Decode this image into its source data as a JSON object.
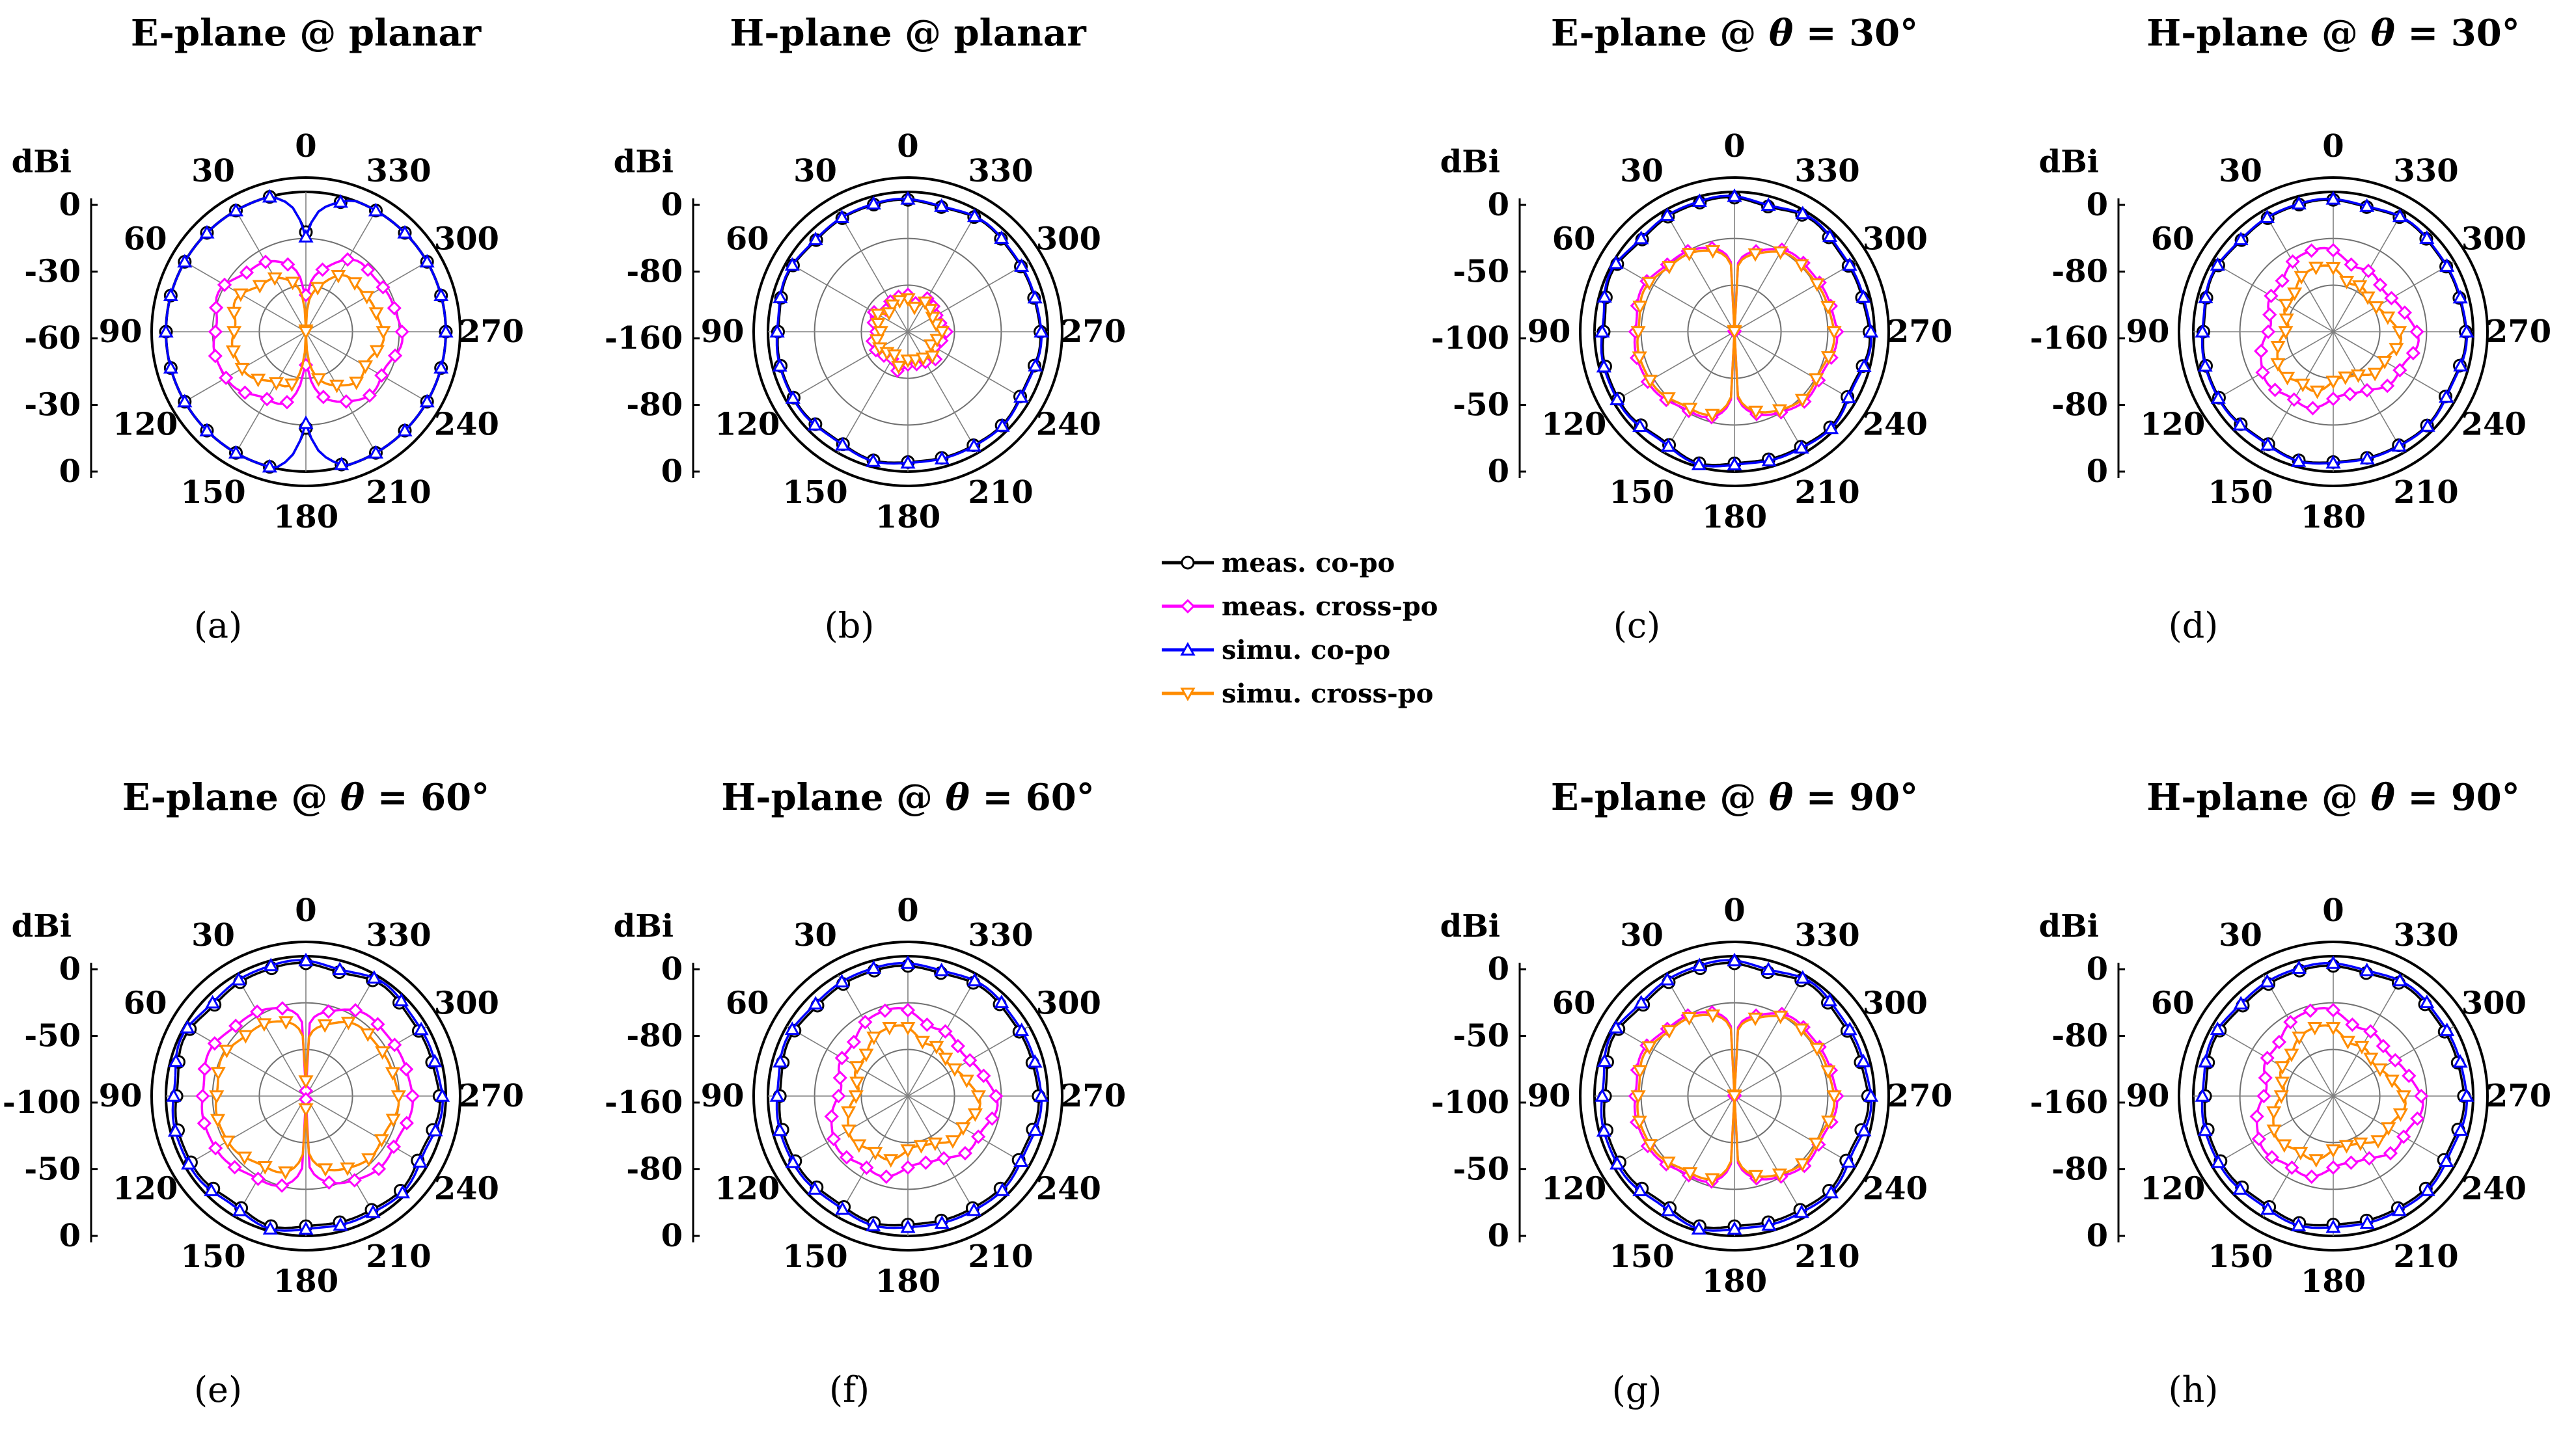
{
  "legend": [
    {
      "label": "meas. co-po",
      "color": "#000000",
      "marker": "circle"
    },
    {
      "label": "meas. cross-po",
      "color": "#ff00ff",
      "marker": "diamond"
    },
    {
      "label": "simu. co-po",
      "color": "#0000ff",
      "marker": "triangle-up"
    },
    {
      "label": "simu. cross-po",
      "color": "#ff8c00",
      "marker": "triangle-down"
    }
  ],
  "chart_data": [
    {
      "type": "polar",
      "title_prefix": "E-plane @ ",
      "title_var": "",
      "title_suffix": "planar",
      "caption": "(a)",
      "rlabel": "dBi",
      "rticks": [
        "0",
        "-30",
        "-60",
        "-30",
        "0"
      ],
      "angle_ticks": [
        "0",
        "30",
        "60",
        "90",
        "120",
        "150",
        "180",
        "210",
        "240",
        "270",
        "300",
        "330"
      ],
      "rlim": [
        -60,
        0
      ],
      "series": [
        {
          "name": "meas. co-po",
          "profile": "fig8",
          "peak": 10,
          "null": -18
        },
        {
          "name": "meas. cross-po",
          "profile": "fig8",
          "peak": -20,
          "null": -45
        },
        {
          "name": "simu. co-po",
          "profile": "fig8",
          "peak": 10,
          "null": -20
        },
        {
          "name": "simu. cross-po",
          "profile": "fig8",
          "peak": -28,
          "null": -60
        }
      ]
    },
    {
      "type": "polar",
      "title_prefix": "H-plane @ ",
      "title_var": "",
      "title_suffix": "planar",
      "caption": "(b)",
      "rlabel": "dBi",
      "rticks": [
        "0",
        "-80",
        "-160",
        "-80",
        "0"
      ],
      "angle_ticks": [
        "0",
        "30",
        "60",
        "90",
        "120",
        "150",
        "180",
        "210",
        "240",
        "270",
        "300",
        "330"
      ],
      "rlim": [
        -160,
        0
      ],
      "series": [
        {
          "name": "meas. co-po",
          "profile": "omni",
          "level": -10
        },
        {
          "name": "meas. cross-po",
          "profile": "small",
          "level": -120
        },
        {
          "name": "simu. co-po",
          "profile": "omni",
          "level": -9
        },
        {
          "name": "simu. cross-po",
          "profile": "small",
          "level": -125
        }
      ]
    },
    {
      "type": "polar",
      "title_prefix": "E-plane @ ",
      "title_var": "θ",
      "title_suffix": " = 30°",
      "caption": "(c)",
      "rlabel": "dBi",
      "rticks": [
        "0",
        "-50",
        "-100",
        "-50",
        "0"
      ],
      "angle_ticks": [
        "0",
        "30",
        "60",
        "90",
        "120",
        "150",
        "180",
        "210",
        "240",
        "270",
        "300",
        "330"
      ],
      "rlim": [
        -100,
        0
      ],
      "series": [
        {
          "name": "meas. co-po",
          "profile": "omni",
          "level": -5
        },
        {
          "name": "meas. cross-po",
          "profile": "fig8",
          "peak": -28,
          "null": -100
        },
        {
          "name": "simu. co-po",
          "profile": "omni",
          "level": -4
        },
        {
          "name": "simu. cross-po",
          "profile": "fig8",
          "peak": -30,
          "null": -100
        }
      ]
    },
    {
      "type": "polar",
      "title_prefix": "H-plane @ ",
      "title_var": "θ",
      "title_suffix": " = 30°",
      "caption": "(d)",
      "rlabel": "dBi",
      "rticks": [
        "0",
        "-80",
        "-160",
        "-80",
        "0"
      ],
      "angle_ticks": [
        "0",
        "30",
        "60",
        "90",
        "120",
        "150",
        "180",
        "210",
        "240",
        "270",
        "300",
        "330"
      ],
      "rlim": [
        -160,
        0
      ],
      "series": [
        {
          "name": "meas. co-po",
          "profile": "omni",
          "level": -10
        },
        {
          "name": "meas. cross-po",
          "profile": "blob",
          "level": -75
        },
        {
          "name": "simu. co-po",
          "profile": "omni",
          "level": -9
        },
        {
          "name": "simu. cross-po",
          "profile": "blob",
          "level": -95
        }
      ]
    },
    {
      "type": "polar",
      "title_prefix": "E-plane @ ",
      "title_var": "θ",
      "title_suffix": " = 60°",
      "caption": "(e)",
      "rlabel": "dBi",
      "rticks": [
        "0",
        "-50",
        "-100",
        "-50",
        "0"
      ],
      "angle_ticks": [
        "0",
        "30",
        "60",
        "90",
        "120",
        "150",
        "180",
        "210",
        "240",
        "270",
        "300",
        "330"
      ],
      "rlim": [
        -100,
        0
      ],
      "series": [
        {
          "name": "meas. co-po",
          "profile": "omni",
          "level": -6
        },
        {
          "name": "meas. cross-po",
          "profile": "fig8",
          "peak": -25,
          "null": -100
        },
        {
          "name": "simu. co-po",
          "profile": "omni",
          "level": -4
        },
        {
          "name": "simu. cross-po",
          "profile": "fig8",
          "peak": -35,
          "null": -90
        }
      ]
    },
    {
      "type": "polar",
      "title_prefix": "H-plane @ ",
      "title_var": "θ",
      "title_suffix": " = 60°",
      "caption": "(f)",
      "rlabel": "dBi",
      "rticks": [
        "0",
        "-80",
        "-160",
        "-80",
        "0"
      ],
      "angle_ticks": [
        "0",
        "30",
        "60",
        "90",
        "120",
        "150",
        "180",
        "210",
        "240",
        "270",
        "300",
        "330"
      ],
      "rlim": [
        -160,
        0
      ],
      "series": [
        {
          "name": "meas. co-po",
          "profile": "omni",
          "level": -12
        },
        {
          "name": "meas. cross-po",
          "profile": "blob",
          "level": -70
        },
        {
          "name": "simu. co-po",
          "profile": "omni",
          "level": -9
        },
        {
          "name": "simu. cross-po",
          "profile": "blob",
          "level": -90
        }
      ]
    },
    {
      "type": "polar",
      "title_prefix": "E-plane @ ",
      "title_var": "θ",
      "title_suffix": " = 90°",
      "caption": "(g)",
      "rlabel": "dBi",
      "rticks": [
        "0",
        "-50",
        "-100",
        "-50",
        "0"
      ],
      "angle_ticks": [
        "0",
        "30",
        "60",
        "90",
        "120",
        "150",
        "180",
        "210",
        "240",
        "270",
        "300",
        "330"
      ],
      "rlim": [
        -100,
        0
      ],
      "series": [
        {
          "name": "meas. co-po",
          "profile": "omni",
          "level": -6
        },
        {
          "name": "meas. cross-po",
          "profile": "fig8",
          "peak": -28,
          "null": -100
        },
        {
          "name": "simu. co-po",
          "profile": "omni",
          "level": -4
        },
        {
          "name": "simu. cross-po",
          "profile": "fig8",
          "peak": -30,
          "null": -100
        }
      ]
    },
    {
      "type": "polar",
      "title_prefix": "H-plane @ ",
      "title_var": "θ",
      "title_suffix": " = 90°",
      "caption": "(h)",
      "rlabel": "dBi",
      "rticks": [
        "0",
        "-80",
        "-160",
        "-80",
        "0"
      ],
      "angle_ticks": [
        "0",
        "30",
        "60",
        "90",
        "120",
        "150",
        "180",
        "210",
        "240",
        "270",
        "300",
        "330"
      ],
      "rlim": [
        -160,
        0
      ],
      "series": [
        {
          "name": "meas. co-po",
          "profile": "omni",
          "level": -12
        },
        {
          "name": "meas. cross-po",
          "profile": "blob",
          "level": -70
        },
        {
          "name": "simu. co-po",
          "profile": "omni",
          "level": -9
        },
        {
          "name": "simu. cross-po",
          "profile": "blob",
          "level": -90
        }
      ]
    }
  ]
}
